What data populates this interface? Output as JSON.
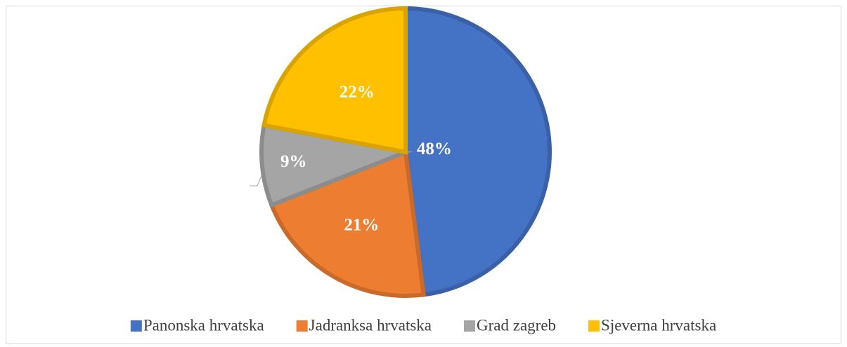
{
  "chart_data": {
    "type": "pie",
    "categories": [
      "Panonska hrvatska",
      "Jadranksa hrvatska",
      "Grad zagreb",
      "Sjeverna hrvatska"
    ],
    "values": [
      48,
      21,
      9,
      22
    ],
    "value_labels": [
      "48%",
      "21%",
      "9%",
      "22%"
    ],
    "colors": [
      "#4472c4",
      "#ed7d31",
      "#a5a5a5",
      "#ffc000"
    ],
    "legend": "bottom"
  }
}
